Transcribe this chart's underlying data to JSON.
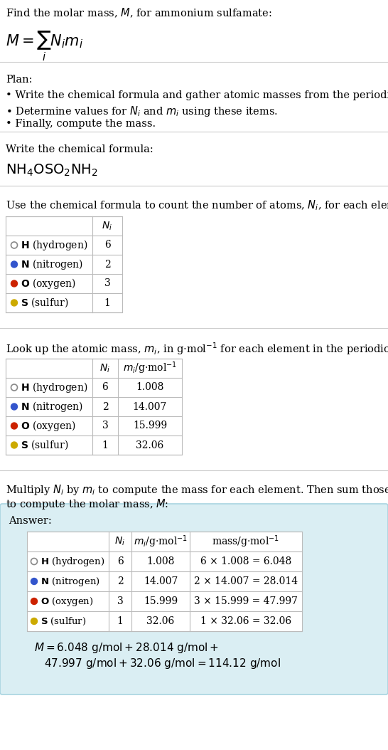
{
  "bg_color": "#ffffff",
  "answer_bg": "#daeef3",
  "answer_border": "#a8d4e0",
  "table_border": "#bbbbbb",
  "line_color": "#cccccc",
  "elements": [
    "H (hydrogen)",
    "N (nitrogen)",
    "O (oxygen)",
    "S (sulfur)"
  ],
  "element_symbols": [
    "H",
    "N",
    "O",
    "S"
  ],
  "dot_colors": [
    "none",
    "#3355cc",
    "#cc2200",
    "#ccaa00"
  ],
  "Ni": [
    6,
    2,
    3,
    1
  ],
  "mi_strs": [
    "1.008",
    "14.007",
    "15.999",
    "32.06"
  ],
  "mass_strings": [
    "6 × 1.008 = 6.048",
    "2 × 14.007 = 28.014",
    "3 × 15.999 = 47.997",
    "1 × 32.06 = 32.06"
  ]
}
